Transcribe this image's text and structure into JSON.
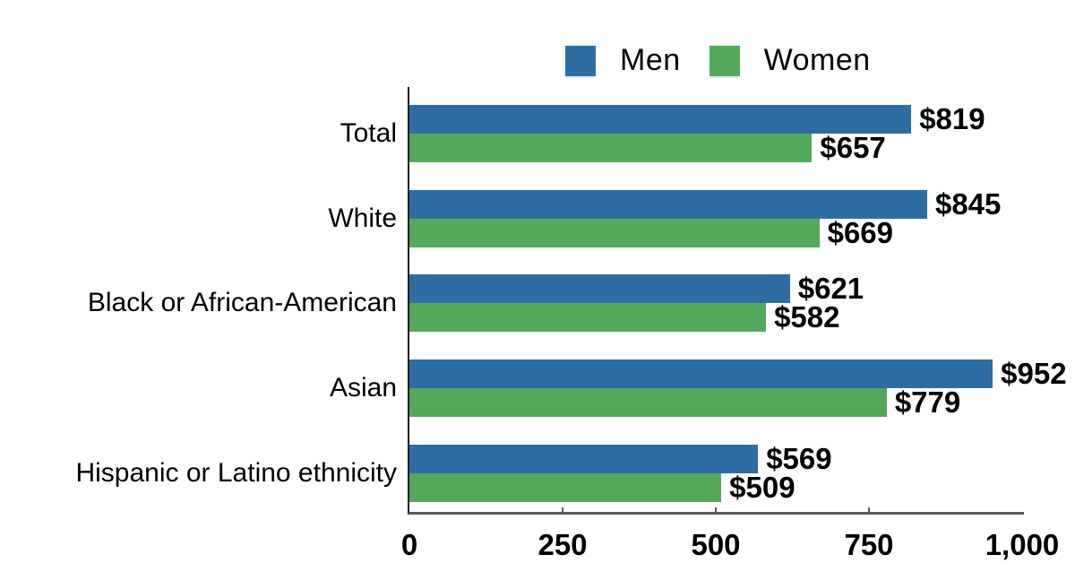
{
  "chart_data": {
    "type": "bar",
    "orientation": "horizontal",
    "title": "",
    "categories": [
      "Total",
      "White",
      "Black or African-American",
      "Asian",
      "Hispanic or Latino ethnicity"
    ],
    "series": [
      {
        "name": "Men",
        "color": "#2E6DA4",
        "values": [
          819,
          845,
          621,
          952,
          569
        ],
        "labels": [
          "$819",
          "$845",
          "$621",
          "$952",
          "$569"
        ]
      },
      {
        "name": "Women",
        "color": "#54A85C",
        "values": [
          657,
          669,
          582,
          779,
          509
        ],
        "labels": [
          "$657",
          "$669",
          "$582",
          "$779",
          "$509"
        ]
      }
    ],
    "x_axis": {
      "min": 0,
      "max": 1000,
      "ticks": [
        0,
        250,
        500,
        750,
        1000
      ],
      "tick_labels": [
        "0",
        "250",
        "500",
        "750",
        "1,000"
      ]
    },
    "legend": {
      "position": "top",
      "entries": [
        "Men",
        "Women"
      ]
    },
    "grid": false
  },
  "colors": {
    "men": "#2E6DA4",
    "women": "#54A85C",
    "axis_line": "#595959",
    "y_axis_line": "#1f1f1f",
    "text": "#000000",
    "background": "#ffffff"
  }
}
